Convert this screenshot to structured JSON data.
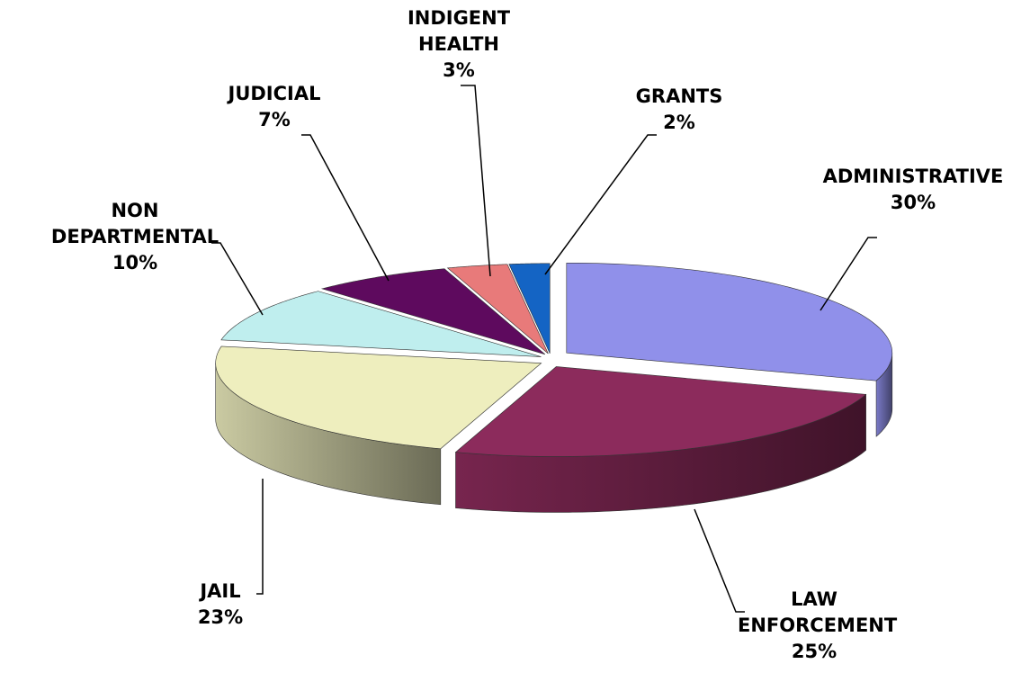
{
  "chart_data": {
    "type": "pie",
    "categories": [
      "ADMINISTRATIVE",
      "LAW ENFORCEMENT",
      "JAIL",
      "NON DEPARTMENTAL",
      "JUDICIAL",
      "INDIGENT HEALTH",
      "GRANTS"
    ],
    "values": [
      30,
      25,
      23,
      10,
      7,
      3,
      2
    ],
    "value_labels": [
      "30%",
      "25%",
      "23%",
      "10%",
      "7%",
      "3%",
      "2%"
    ],
    "colors": [
      "#9090ea",
      "#8c2b5c",
      "#eeeebe",
      "#bfeeee",
      "#5e0a5e",
      "#e87a7a",
      "#1464c4"
    ]
  }
}
